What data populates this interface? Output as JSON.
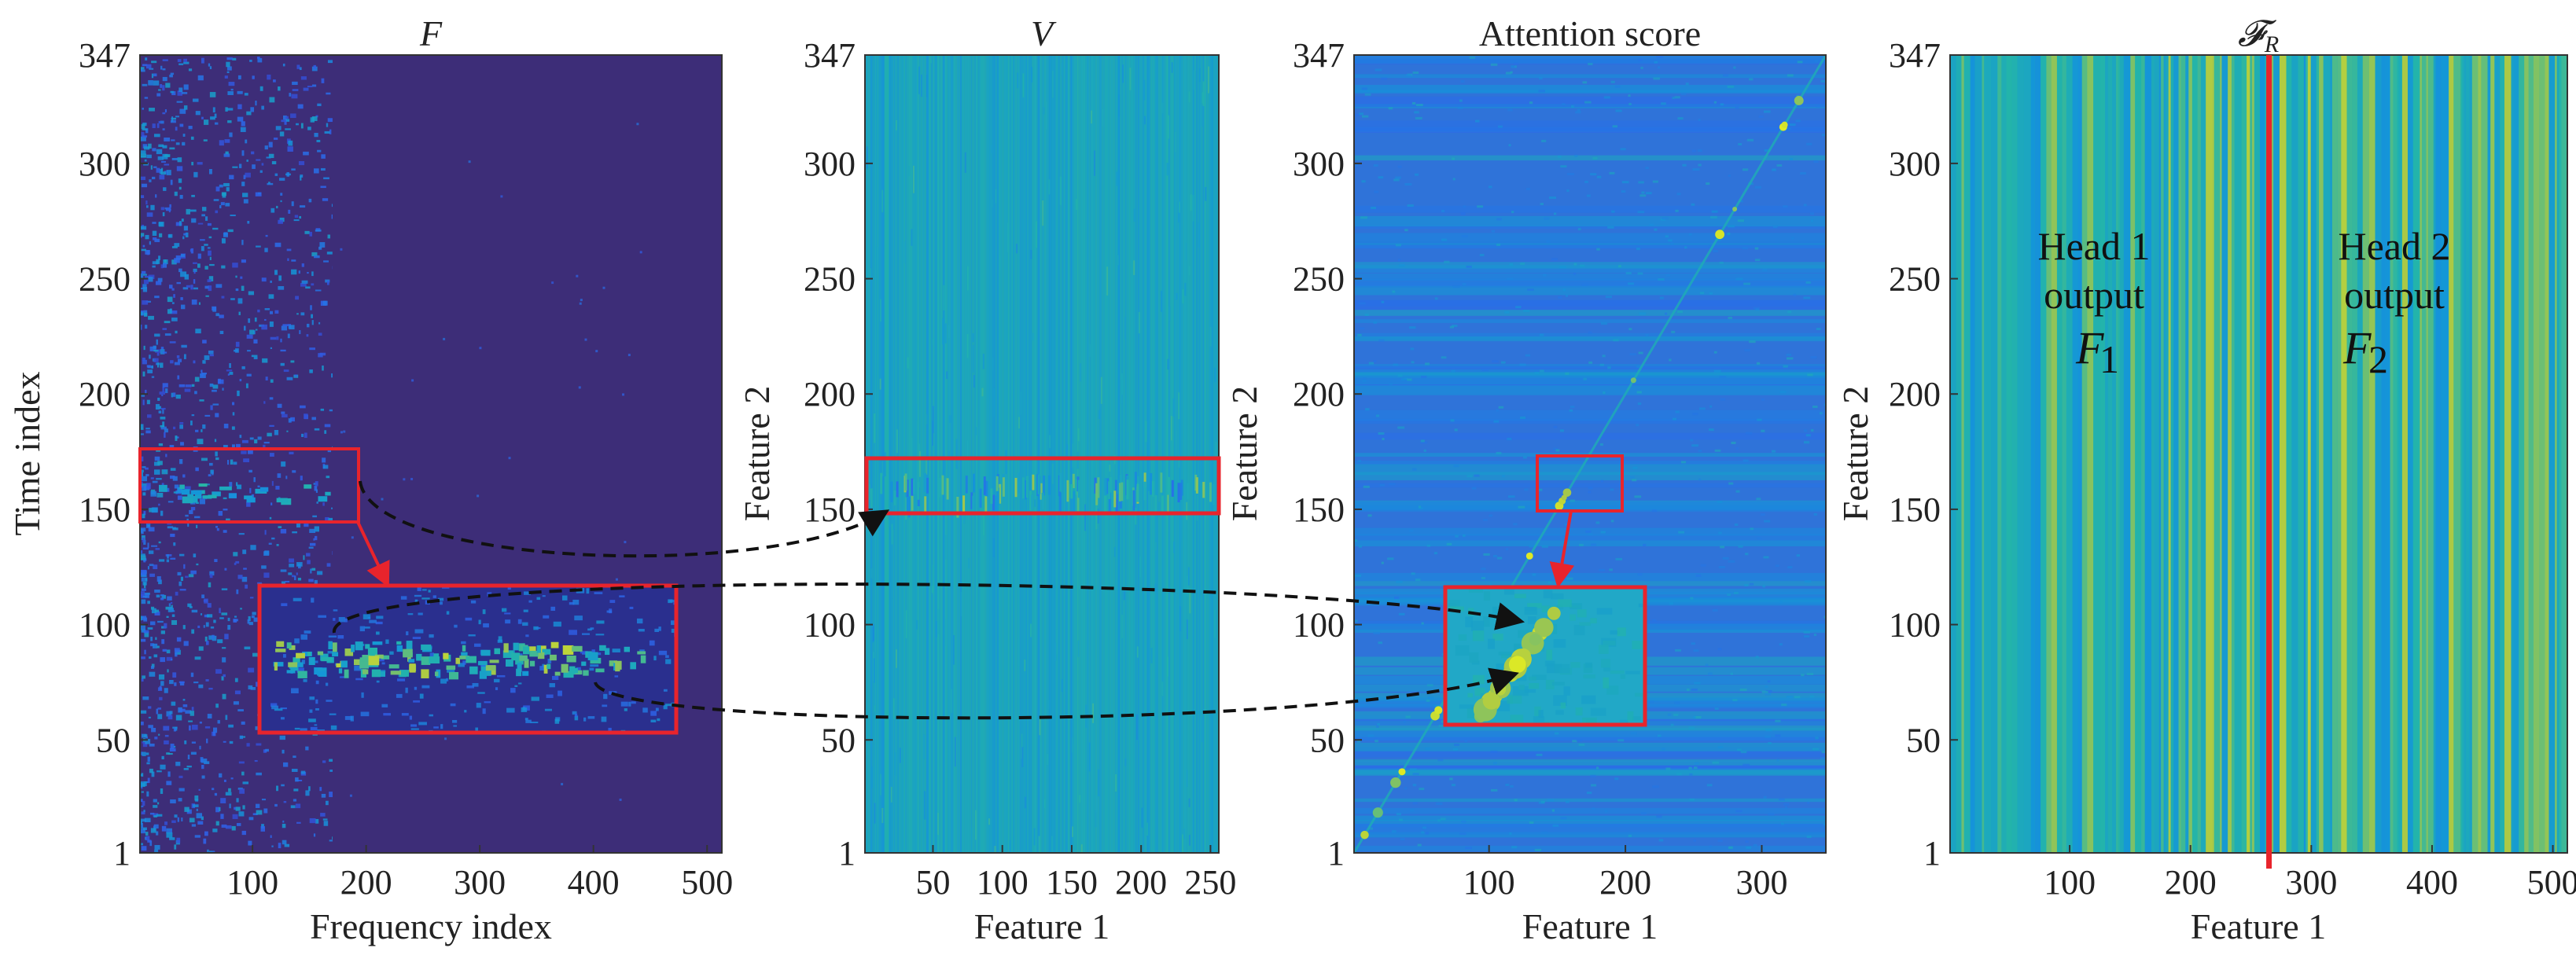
{
  "chart_data": [
    {
      "type": "heatmap",
      "title": "F",
      "xlabel": "Frequency index",
      "ylabel": "Time index",
      "xlim": [
        1,
        513
      ],
      "ylim": [
        1,
        347
      ],
      "xticks": [
        100,
        200,
        300,
        400,
        500
      ],
      "yticks": [
        1,
        50,
        100,
        150,
        200,
        250,
        300,
        347
      ],
      "colormap": "parula",
      "background_color": "#3d2d78",
      "highlight_box": {
        "x": [
          1,
          190
        ],
        "y": [
          146,
          175
        ]
      },
      "inset": {
        "x": [
          105,
          470
        ],
        "y": [
          50,
          120
        ],
        "source": "highlight_box"
      }
    },
    {
      "type": "heatmap",
      "title": "V",
      "xlabel": "Feature 1",
      "ylabel": "Feature 2",
      "xlim": [
        1,
        256
      ],
      "ylim": [
        1,
        347
      ],
      "xticks": [
        50,
        100,
        150,
        200,
        250
      ],
      "yticks": [
        1,
        50,
        100,
        150,
        200,
        250,
        300,
        347
      ],
      "colormap": "parula",
      "background_color": "#1fa6b7",
      "highlight_box": {
        "x": [
          1,
          256
        ],
        "y": [
          148,
          172
        ]
      }
    },
    {
      "type": "heatmap",
      "title": "Attention score",
      "xlabel": "Feature 1",
      "ylabel": "Feature 2",
      "xlim": [
        1,
        347
      ],
      "ylim": [
        1,
        347
      ],
      "xticks": [
        100,
        200,
        300
      ],
      "yticks": [
        1,
        50,
        100,
        150,
        200,
        250,
        300,
        347
      ],
      "colormap": "parula",
      "background_color": "#2f73d9",
      "highlight_box": {
        "x": [
          145,
          200
        ],
        "y": [
          150,
          175
        ]
      },
      "inset": {
        "x": [
          70,
          220
        ],
        "y": [
          55,
          115
        ],
        "source": "highlight_box"
      }
    },
    {
      "type": "heatmap",
      "title": "𝓕_R",
      "xlabel": "Feature 1",
      "ylabel": "Feature 2",
      "xlim": [
        1,
        512
      ],
      "ylim": [
        1,
        347
      ],
      "xticks": [
        100,
        200,
        300,
        400,
        500
      ],
      "yticks": [
        1,
        50,
        100,
        150,
        200,
        250,
        300,
        347
      ],
      "colormap": "parula",
      "background_color": "#25b0b0",
      "divider_x": 265,
      "annotations": [
        {
          "lines": [
            "Head 1",
            "output"
          ],
          "symbol": "F",
          "subscript": "1"
        },
        {
          "lines": [
            "Head 2",
            "output"
          ],
          "symbol": "F",
          "subscript": "2"
        }
      ]
    }
  ],
  "colors": {
    "highlight": "#e8242c",
    "connector": "#111111",
    "divider": "#e8242c"
  }
}
